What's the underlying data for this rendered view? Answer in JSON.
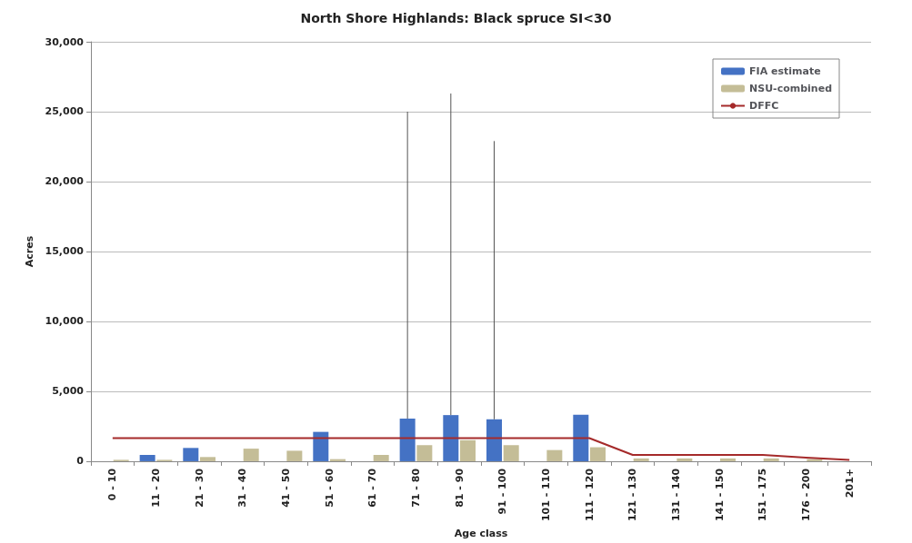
{
  "chart_data": {
    "type": "bar",
    "title": "North Shore Highlands: Black spruce SI<30",
    "xlabel": "Age class",
    "ylabel": "Acres",
    "categories": [
      "0 - 10",
      "11 - 20",
      "21 - 30",
      "31 - 40",
      "41 - 50",
      "51 - 60",
      "61 - 70",
      "71 - 80",
      "81 - 90",
      "91 - 100",
      "101 - 110",
      "111 - 120",
      "121 - 130",
      "131 - 140",
      "141 - 150",
      "151 - 175",
      "176 - 200",
      "201+"
    ],
    "series": [
      {
        "name": "FIA estimate",
        "color": "#4472c4",
        "values": [
          0,
          450,
          950,
          0,
          0,
          2100,
          0,
          3050,
          3300,
          3000,
          0,
          3330,
          0,
          0,
          0,
          0,
          0,
          0
        ],
        "errors": [
          null,
          null,
          null,
          null,
          null,
          null,
          null,
          [
            3050,
            25000
          ],
          [
            3300,
            26300
          ],
          [
            3000,
            22900
          ],
          null,
          null,
          null,
          null,
          null,
          null,
          null,
          null
        ]
      },
      {
        "name": "NSU-combined",
        "color": "#c4bd97",
        "values": [
          100,
          100,
          300,
          900,
          750,
          150,
          450,
          1150,
          1500,
          1150,
          800,
          1000,
          200,
          200,
          200,
          200,
          150,
          null
        ]
      },
      {
        "name": "DFFC",
        "type": "line",
        "color": "#a52a2a",
        "values": [
          1650,
          1650,
          1650,
          1650,
          1650,
          1650,
          1650,
          1650,
          1650,
          1650,
          1650,
          1650,
          450,
          450,
          450,
          450,
          250,
          100
        ]
      }
    ],
    "ylim": [
      0,
      30000
    ],
    "yticks": [
      {
        "value": 0,
        "label": "0"
      },
      {
        "value": 5000,
        "label": "5,000"
      },
      {
        "value": 10000,
        "label": "10,000"
      },
      {
        "value": 15000,
        "label": "15,000"
      },
      {
        "value": 20000,
        "label": "20,000"
      },
      {
        "value": 25000,
        "label": "25,000"
      },
      {
        "value": 30000,
        "label": "30,000"
      }
    ],
    "grid": "y",
    "legend": "top right",
    "marker": "none"
  }
}
